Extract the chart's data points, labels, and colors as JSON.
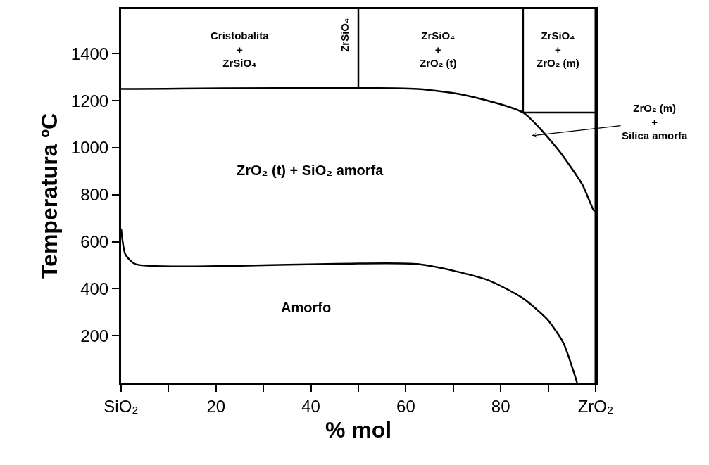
{
  "chart_data": {
    "type": "line",
    "xlabel": "% mol",
    "ylabel": "Temperatura ºC",
    "xlim": [
      0,
      100
    ],
    "ylim": [
      0,
      1590
    ],
    "xticks": [
      {
        "value": 0,
        "label": "SiO₂"
      },
      {
        "value": 10,
        "label": null
      },
      20,
      {
        "value": 30,
        "label": null
      },
      40,
      {
        "value": 50,
        "label": null
      },
      60,
      {
        "value": 70,
        "label": null
      },
      80,
      {
        "value": 90,
        "label": null
      },
      {
        "value": 100,
        "label": "ZrO₂"
      }
    ],
    "yticks": [
      200,
      400,
      600,
      800,
      1000,
      1200,
      1400
    ],
    "marker": "none",
    "line_style": "solid",
    "series": [
      {
        "color": "#000000",
        "x": [
          0,
          62.5,
          72.4,
          84.7,
          92.1,
          97.2,
          99.6,
          100
        ],
        "values": [
          1250,
          1250,
          1224,
          1150,
          992,
          843,
          734,
          730
        ]
      },
      {
        "color": "#000000",
        "x": [
          50,
          50
        ],
        "values": [
          1250,
          1590
        ]
      },
      {
        "color": "#000000",
        "x": [
          84.7,
          84.7
        ],
        "values": [
          1150,
          1590
        ]
      },
      {
        "color": "#000000",
        "x": [
          84.7,
          100
        ],
        "values": [
          1150,
          1150
        ]
      },
      {
        "color": "#000000",
        "x": [
          0,
          0.9,
          3,
          62.5,
          77.3,
          84.7,
          89.8,
          93.2,
          96.1
        ],
        "values": [
          656,
          546,
          505,
          505,
          437,
          359,
          270,
          169,
          0
        ]
      }
    ],
    "annotations": [
      "Cristobalita\n+\nZrSiO₄",
      "ZrSiO₄",
      "ZrSiO₄\n+\nZrO₂ (t)",
      "ZrSiO₄\n+\nZrO₂ (m)",
      "ZrO₂ (t) + SiO₂ amorfa",
      "Amorfo",
      "ZrO₂ (m)\n+\nSilica amorfa"
    ],
    "ref_lines": [
      {
        "axis": "x",
        "value": 100,
        "color": "#000000"
      }
    ]
  }
}
